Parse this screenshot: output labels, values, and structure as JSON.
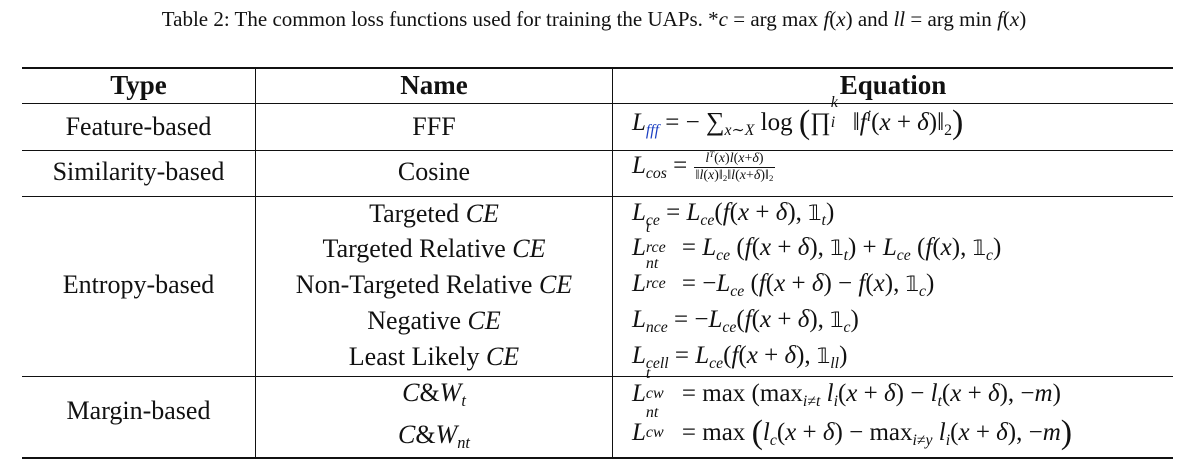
{
  "caption": "Table 2: The common loss functions used for training the UAPs. *c = arg max f(x) and ll = arg min f(x)",
  "headers": {
    "type": "Type",
    "name": "Name",
    "equation": "Equation"
  },
  "groups": {
    "feature": {
      "type": "Feature-based",
      "names": [
        "FFF"
      ]
    },
    "similarity": {
      "type": "Similarity-based",
      "names": [
        "Cosine"
      ]
    },
    "entropy": {
      "type": "Entropy-based",
      "names": [
        "Targeted CE",
        "Targeted Relative CE",
        "Non-Targeted Relative CE",
        "Negative CE",
        "Least Likely CE"
      ]
    },
    "margin": {
      "type": "Margin-based",
      "names": [
        "C&Wt",
        "C&Wnt"
      ]
    }
  },
  "equations": [
    "L_fff = − Σ_{x∼X} log ( Π_i^k ||f^i(x + δ)||_2 )",
    "L_cos = l^T(x)l(x+δ) / ||l(x)||_2 ||l(x+δ)||_2",
    "L_ce = L_ce(f(x + δ), 1_t)",
    "L_rce^t = L_ce (f(x + δ), 1_t) + L_ce (f(x), 1_c)",
    "L_rce^nt = −L_ce (f(x + δ) − f(x), 1_c)",
    "L_nce = −L_ce(f(x + δ), 1_c)",
    "L_cell = L_ce(f(x + δ), 1_ll)",
    "L_cw^t = max (max_{i≠t} l_i(x + δ) − l_t(x + δ), −m)",
    "L_cw^nt = max ( l_c(x + δ) − max_{i≠y} l_i(x + δ), −m )"
  ]
}
